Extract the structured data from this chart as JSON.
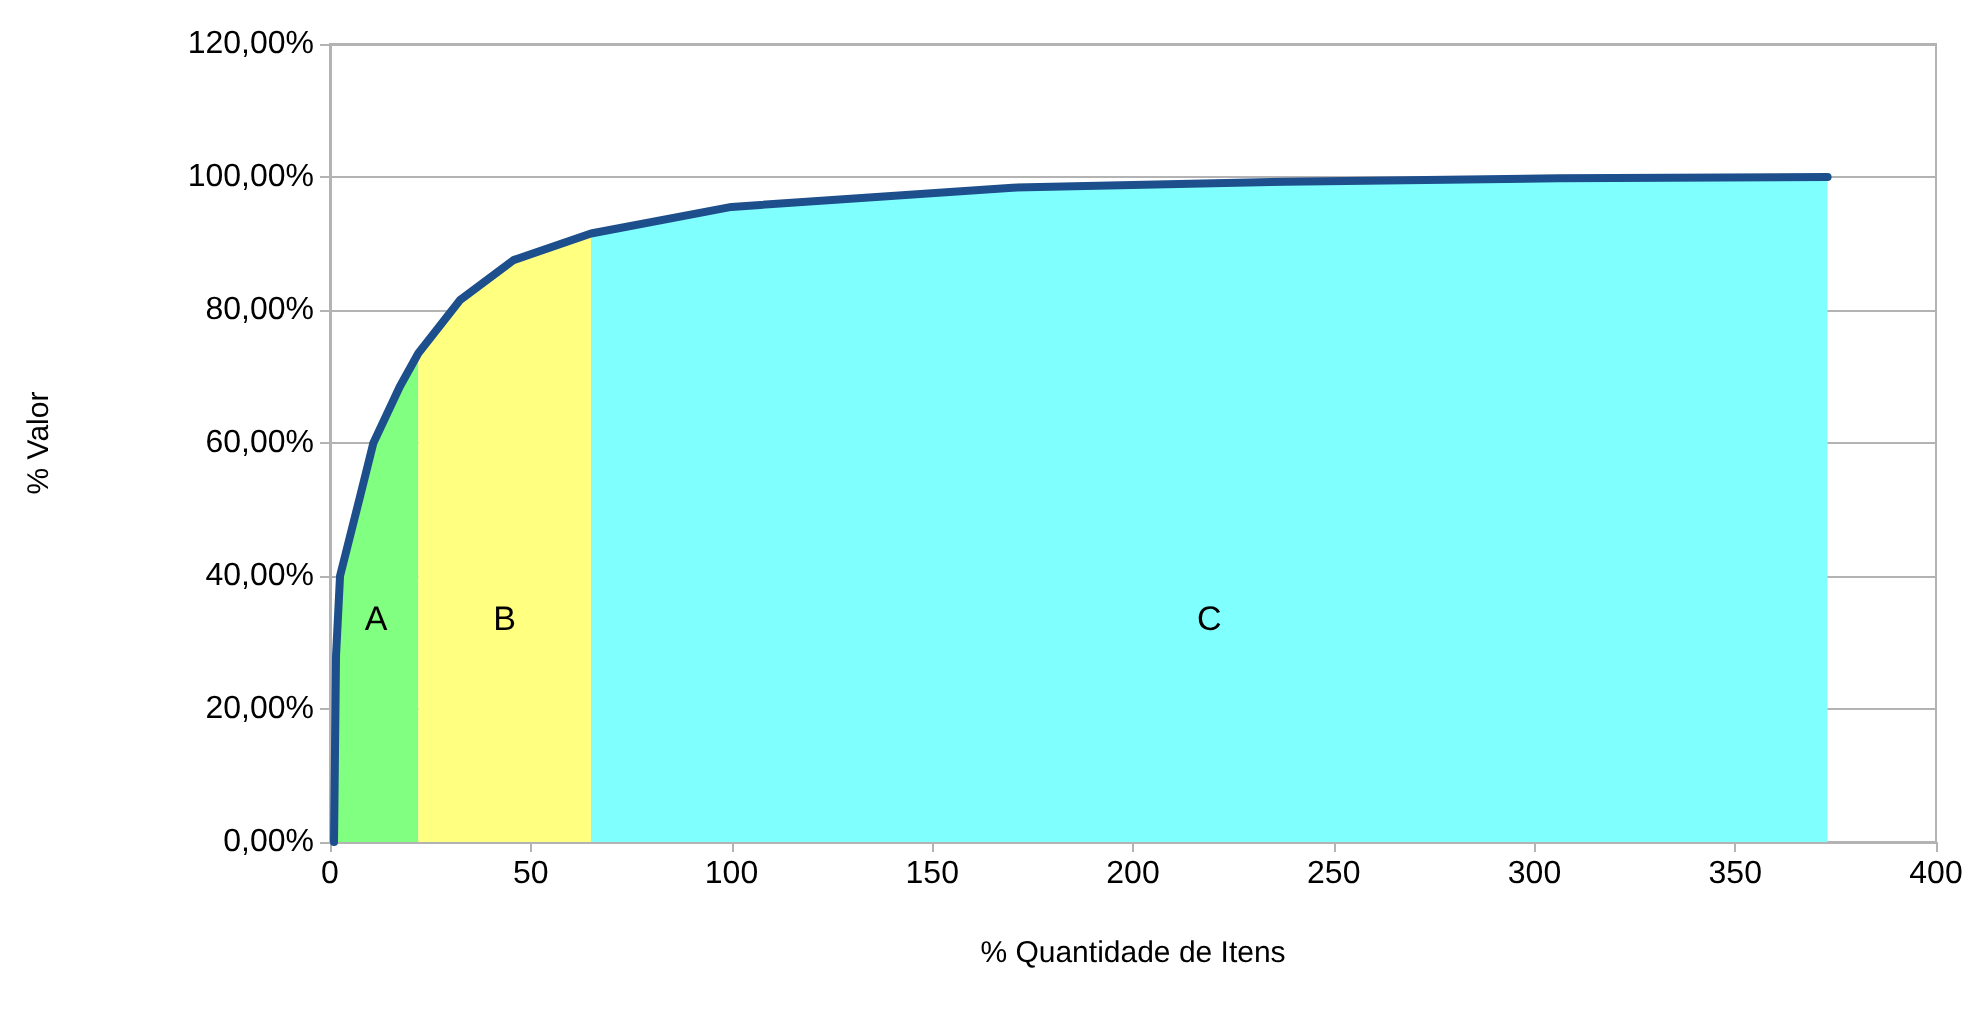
{
  "chart_data": {
    "type": "area",
    "xlabel": "% Quantidade de Itens",
    "ylabel": "% Valor",
    "series": [
      {
        "color": "#80ff80",
        "x": [
          1,
          1.5,
          2.5,
          7.5,
          10.8,
          17.4,
          22
        ],
        "values": [
          0,
          28,
          40,
          52,
          60,
          68.5,
          73.5
        ]
      },
      {
        "color": "#ffff80",
        "x": [
          22,
          32.4,
          45.7,
          65
        ],
        "values": [
          73.5,
          81.5,
          87.5,
          91.5
        ]
      },
      {
        "color": "#80ffff",
        "x": [
          65,
          100,
          170,
          238,
          306,
          373
        ],
        "values": [
          91.5,
          95.5,
          98.4,
          99.3,
          99.8,
          100
        ]
      },
      {
        "type": "line",
        "color": "#1c4f8c",
        "x": [
          1,
          1.5,
          2.5,
          7.5,
          10.8,
          17.4,
          22,
          32.4,
          45.7,
          65,
          100,
          170,
          238,
          306,
          373
        ],
        "values": [
          0,
          28,
          40,
          52,
          60,
          68.5,
          73.5,
          81.5,
          87.5,
          91.5,
          95.5,
          98.4,
          99.3,
          99.8,
          100
        ]
      }
    ],
    "annotations": [
      "A",
      "B",
      "C"
    ],
    "xlim": [
      0,
      400
    ],
    "xticks": [
      0,
      50,
      100,
      150,
      200,
      250,
      300,
      350,
      400
    ],
    "ylim": [
      0,
      120
    ],
    "yticks": [
      {
        "value": 0,
        "label": "0,00%"
      },
      {
        "value": 20,
        "label": "20,00%"
      },
      {
        "value": 40,
        "label": "40,00%"
      },
      {
        "value": 60,
        "label": "60,00%"
      },
      {
        "value": 80,
        "label": "80,00%"
      },
      {
        "value": 100,
        "label": "100,00%"
      },
      {
        "value": 120,
        "label": "120,00%"
      }
    ],
    "grid": "y",
    "marker": "none",
    "line_style": "solid"
  }
}
